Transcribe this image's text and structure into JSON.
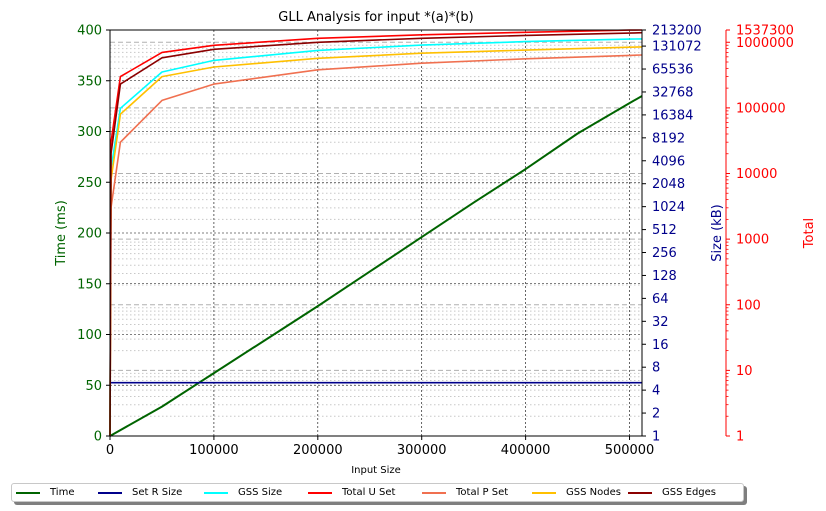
{
  "chart_data": {
    "type": "line",
    "title": "GLL Analysis for input *(a)*(b)",
    "xlabel": "Input Size",
    "ylabel_left": "Time (ms)",
    "ylabel_right1": "Size (kB)",
    "ylabel_right2": "Total",
    "xlim": [
      0,
      512000
    ],
    "ylim_left": [
      0,
      400
    ],
    "ylim_right1_log2": [
      1,
      213200
    ],
    "ylim_right2_log10": [
      1,
      1537300
    ],
    "x_ticks": [
      "0",
      "100000",
      "200000",
      "300000",
      "400000",
      "500000"
    ],
    "y_left_ticks": [
      "0",
      "50",
      "100",
      "150",
      "200",
      "250",
      "300",
      "350",
      "400"
    ],
    "y_right1_ticks": [
      "1",
      "2",
      "4",
      "8",
      "16",
      "32",
      "64",
      "128",
      "256",
      "512",
      "1024",
      "2048",
      "4096",
      "8192",
      "16384",
      "32768",
      "65536",
      "131072",
      "213200"
    ],
    "y_right2_ticks": [
      "1",
      "10",
      "100",
      "1000",
      "10000",
      "100000",
      "1000000",
      "1537300"
    ],
    "grid": true,
    "legend_position": "bottom",
    "series": [
      {
        "name": "Time",
        "axis": "left",
        "color": "#006400",
        "x": [
          0,
          50000,
          100000,
          150000,
          200000,
          250000,
          300000,
          350000,
          400000,
          450000,
          500000,
          512000
        ],
        "y": [
          0,
          29,
          62,
          95,
          128,
          162,
          196,
          230,
          263,
          298,
          328,
          335
        ]
      },
      {
        "name": "Set R Size",
        "axis": "right1",
        "color": "#00008b",
        "x": [
          0,
          512000
        ],
        "y": [
          5,
          5
        ]
      },
      {
        "name": "GSS Size",
        "axis": "right1",
        "color": "#00ffff",
        "x": [
          1000,
          10000,
          50000,
          100000,
          200000,
          300000,
          400000,
          500000,
          512000
        ],
        "y": [
          3200,
          20000,
          60000,
          85000,
          115000,
          135000,
          150000,
          162000,
          163000
        ]
      },
      {
        "name": "Total U Set",
        "axis": "right2",
        "color": "#ff0000",
        "x": [
          1000,
          10000,
          50000,
          100000,
          200000,
          300000,
          400000,
          500000,
          512000
        ],
        "y": [
          30000,
          300000,
          700000,
          900000,
          1150000,
          1300000,
          1420000,
          1530000,
          1537300
        ]
      },
      {
        "name": "Total P Set",
        "axis": "right2",
        "color": "#f07050",
        "x": [
          1000,
          10000,
          50000,
          100000,
          200000,
          300000,
          400000,
          500000,
          512000
        ],
        "y": [
          3000,
          30000,
          130000,
          230000,
          380000,
          480000,
          560000,
          630000,
          640000
        ]
      },
      {
        "name": "GSS Nodes",
        "axis": "right2",
        "color": "#ffc000",
        "x": [
          1000,
          10000,
          50000,
          100000,
          200000,
          300000,
          400000,
          500000,
          512000
        ],
        "y": [
          8000,
          80000,
          300000,
          420000,
          570000,
          680000,
          760000,
          840000,
          850000
        ]
      },
      {
        "name": "GSS Edges",
        "axis": "right2",
        "color": "#8b0000",
        "x": [
          1000,
          10000,
          50000,
          100000,
          200000,
          300000,
          400000,
          500000,
          512000
        ],
        "y": [
          20000,
          230000,
          580000,
          780000,
          1000000,
          1150000,
          1270000,
          1380000,
          1400000
        ]
      }
    ]
  }
}
